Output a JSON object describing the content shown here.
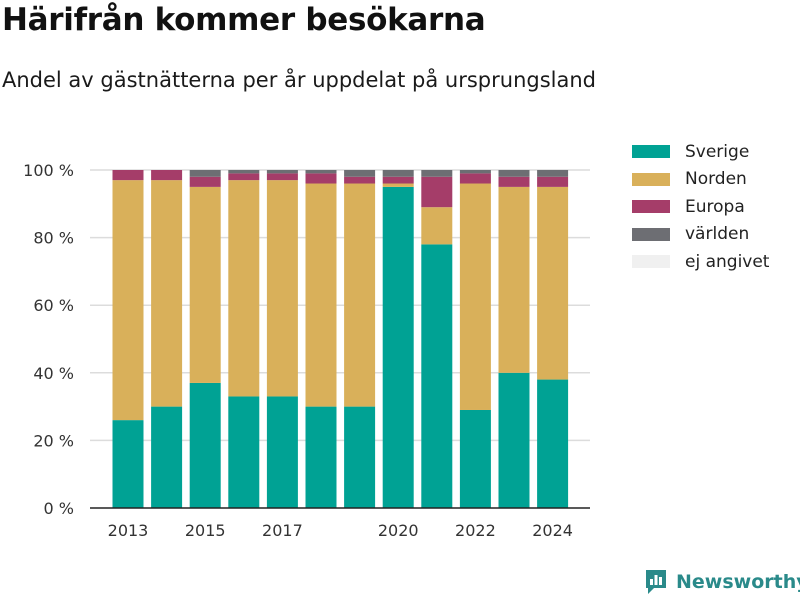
{
  "title": "Härifrån kommer besökarna",
  "subtitle": "Andel av gästnätterna per år uppdelat på ursprungsland",
  "brand": {
    "name": "Newsworthy",
    "icon": "newsworthy-logo-icon",
    "color": "#2a8a8a"
  },
  "chart_data": {
    "type": "bar",
    "stacked": true,
    "categories": [
      2013,
      2014,
      2015,
      2016,
      2017,
      2018,
      2019,
      2020,
      2021,
      2022,
      2023,
      2024
    ],
    "x_ticks": [
      "2013",
      "2015",
      "2017",
      "2020",
      "2022",
      "2024"
    ],
    "y_ticks": [
      "0 %",
      "20 %",
      "40 %",
      "60 %",
      "80 %",
      "100 %"
    ],
    "ylim": [
      0,
      100
    ],
    "grid": true,
    "legend_position": "right",
    "series": [
      {
        "name": "Sverige",
        "color": "#00a294",
        "values": [
          26,
          30,
          37,
          33,
          33,
          30,
          30,
          95,
          78,
          29,
          40,
          38
        ]
      },
      {
        "name": "Norden",
        "color": "#d9b05a",
        "values": [
          71,
          67,
          58,
          64,
          64,
          66,
          66,
          1,
          11,
          67,
          55,
          57
        ]
      },
      {
        "name": "Europa",
        "color": "#a53d69",
        "values": [
          3,
          3,
          3,
          2,
          2,
          3,
          2,
          2,
          9,
          3,
          3,
          3
        ]
      },
      {
        "name": "världen",
        "color": "#6d6e73",
        "values": [
          0,
          0,
          2,
          1,
          1,
          1,
          2,
          2,
          2,
          1,
          2,
          2
        ]
      },
      {
        "name": "ej angivet",
        "color": "#f0f0f0",
        "values": [
          0,
          0,
          0,
          0,
          0,
          0,
          0,
          0,
          0,
          0,
          0,
          0
        ]
      }
    ]
  }
}
